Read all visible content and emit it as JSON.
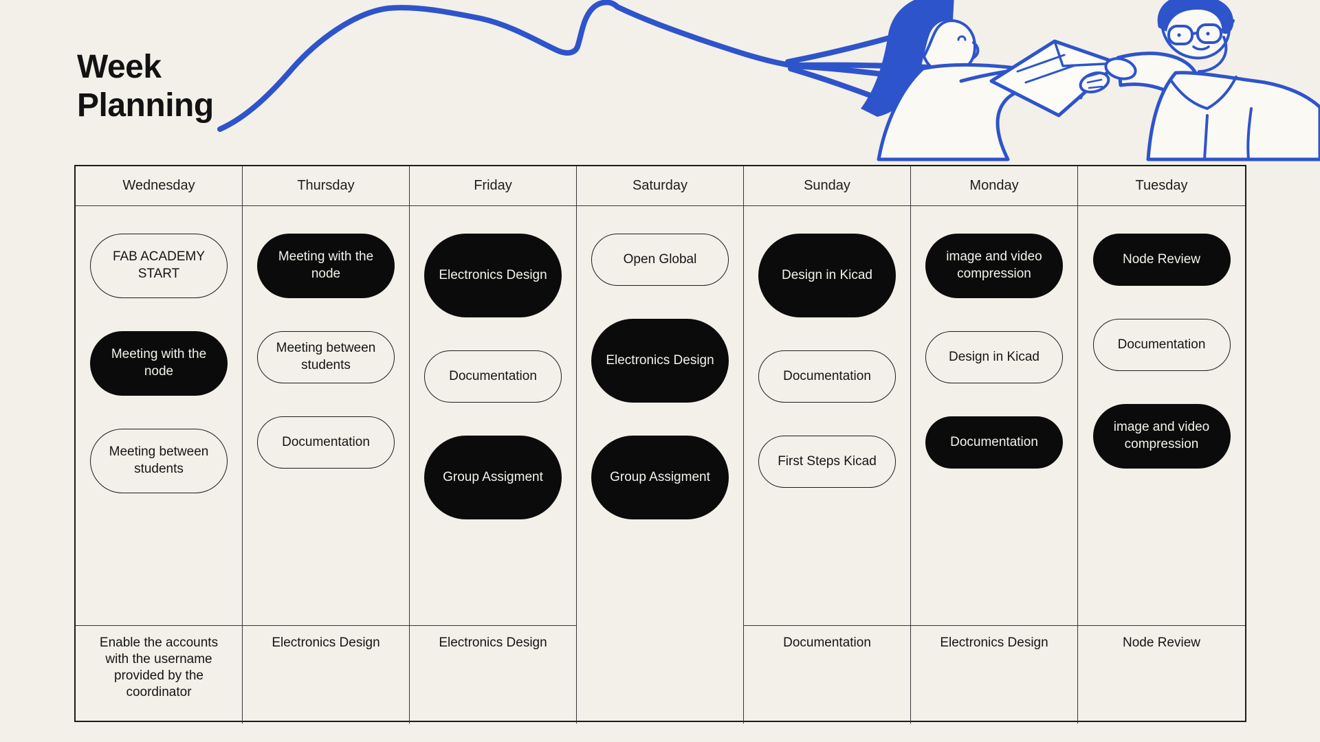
{
  "title": {
    "line1": "Week",
    "line2": "Planning"
  },
  "decor": {
    "squiggle_icon": "blue-crayon-squiggle",
    "illustration": "two-people-exchanging-papers",
    "accent_blue": "#2e54cb",
    "background": "#f3f0e9",
    "pill_black": "#0b0b0b",
    "ink": "#161616"
  },
  "board": {
    "days": [
      {
        "name": "Wednesday",
        "items": [
          {
            "label": "FAB ACADEMY START",
            "style": "outline",
            "size": "md"
          },
          {
            "label": "Meeting with the node",
            "style": "filled",
            "size": "md"
          },
          {
            "label": "Meeting between students",
            "style": "outline",
            "size": "md"
          }
        ],
        "footer": "Enable the accounts with the username provided by the coordinator"
      },
      {
        "name": "Thursday",
        "items": [
          {
            "label": "Meeting with the node",
            "style": "filled",
            "size": "md"
          },
          {
            "label": "Meeting between students",
            "style": "outline",
            "size": "sm"
          },
          {
            "label": "Documentation",
            "style": "outline",
            "size": "sm"
          }
        ],
        "footer": "Electronics Design"
      },
      {
        "name": "Friday",
        "items": [
          {
            "label": "Electronics Design",
            "style": "filled",
            "size": "lg"
          },
          {
            "label": "Documentation",
            "style": "outline",
            "size": "sm"
          },
          {
            "label": "Group Assigment",
            "style": "filled",
            "size": "lg"
          }
        ],
        "footer": "Electronics Design"
      },
      {
        "name": "Saturday",
        "items": [
          {
            "label": "Open Global",
            "style": "outline",
            "size": "sm"
          },
          {
            "label": "Electronics Design",
            "style": "filled",
            "size": "lg"
          },
          {
            "label": "Group Assigment",
            "style": "filled",
            "size": "lg"
          }
        ],
        "footer": null
      },
      {
        "name": "Sunday",
        "items": [
          {
            "label": "Design in Kicad",
            "style": "filled",
            "size": "lg"
          },
          {
            "label": "Documentation",
            "style": "outline",
            "size": "sm"
          },
          {
            "label": "First Steps Kicad",
            "style": "outline",
            "size": "sm"
          }
        ],
        "footer": "Documentation"
      },
      {
        "name": "Monday",
        "items": [
          {
            "label": "image and video compression",
            "style": "filled",
            "size": "md"
          },
          {
            "label": "Design in Kicad",
            "style": "outline",
            "size": "sm"
          },
          {
            "label": "Documentation",
            "style": "filled",
            "size": "sm"
          }
        ],
        "footer": "Electronics Design"
      },
      {
        "name": "Tuesday",
        "items": [
          {
            "label": "Node Review",
            "style": "filled",
            "size": "sm"
          },
          {
            "label": "Documentation",
            "style": "outline",
            "size": "sm"
          },
          {
            "label": "image and video compression",
            "style": "filled",
            "size": "md"
          }
        ],
        "footer": "Node Review"
      }
    ]
  }
}
